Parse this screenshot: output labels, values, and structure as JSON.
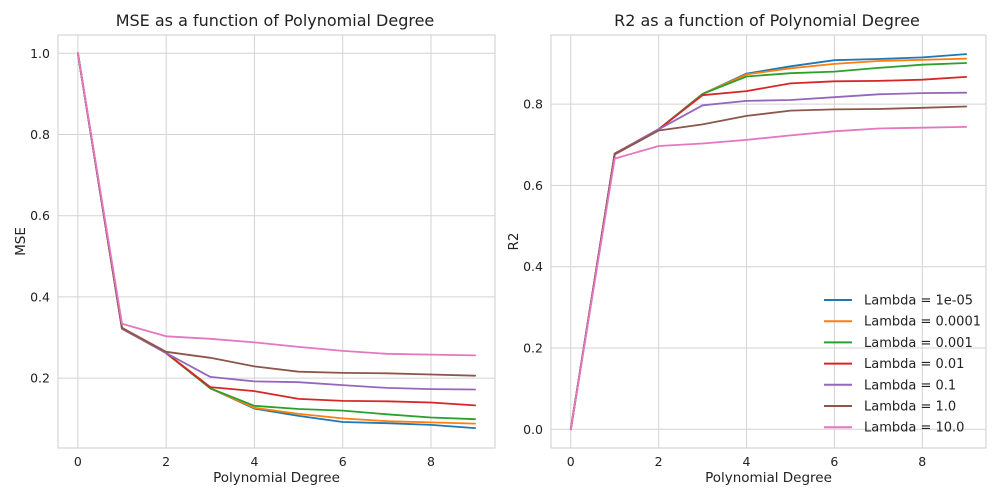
{
  "colors": [
    "#1f77b4",
    "#ff7f0e",
    "#2ca02c",
    "#d62728",
    "#9467bd",
    "#8c564b",
    "#e377c2"
  ],
  "chart_data": [
    {
      "type": "line",
      "title": "MSE as a function of Polynomial Degree",
      "xlabel": "Polynomial Degree",
      "ylabel": "MSE",
      "xlim": [
        -0.45,
        9.45
      ],
      "ylim": [
        0.028,
        1.045
      ],
      "xticks": [
        0,
        2,
        4,
        6,
        8
      ],
      "yticks": [
        0.2,
        0.4,
        0.6,
        0.8,
        1.0
      ],
      "ytick_labels": [
        "0.2",
        "0.4",
        "0.6",
        "0.8",
        "1.0"
      ],
      "grid": true,
      "legend": false,
      "x": [
        0,
        1,
        2,
        3,
        4,
        5,
        6,
        7,
        8,
        9
      ],
      "series": [
        {
          "name": "Lambda = 1e-05",
          "values": [
            1.0,
            0.322,
            0.262,
            0.175,
            0.125,
            0.107,
            0.092,
            0.089,
            0.085,
            0.077
          ]
        },
        {
          "name": "Lambda = 0.0001",
          "values": [
            1.0,
            0.322,
            0.262,
            0.175,
            0.127,
            0.112,
            0.101,
            0.094,
            0.091,
            0.088
          ]
        },
        {
          "name": "Lambda = 0.001",
          "values": [
            1.0,
            0.322,
            0.262,
            0.175,
            0.132,
            0.124,
            0.12,
            0.111,
            0.103,
            0.099
          ]
        },
        {
          "name": "Lambda = 0.01",
          "values": [
            1.0,
            0.322,
            0.262,
            0.178,
            0.168,
            0.149,
            0.144,
            0.143,
            0.14,
            0.133
          ]
        },
        {
          "name": "Lambda = 0.1",
          "values": [
            1.0,
            0.323,
            0.262,
            0.203,
            0.192,
            0.19,
            0.183,
            0.176,
            0.173,
            0.172
          ]
        },
        {
          "name": "Lambda = 1.0",
          "values": [
            1.0,
            0.324,
            0.265,
            0.25,
            0.229,
            0.216,
            0.213,
            0.212,
            0.209,
            0.206
          ]
        },
        {
          "name": "Lambda = 10.0",
          "values": [
            1.0,
            0.334,
            0.303,
            0.297,
            0.288,
            0.277,
            0.267,
            0.26,
            0.258,
            0.256
          ]
        }
      ]
    },
    {
      "type": "line",
      "title": "R2 as a function of Polynomial Degree",
      "xlabel": "Polynomial Degree",
      "ylabel": "R2",
      "xlim": [
        -0.45,
        9.45
      ],
      "ylim": [
        -0.046,
        0.97
      ],
      "xticks": [
        0,
        2,
        4,
        6,
        8
      ],
      "yticks": [
        0.0,
        0.2,
        0.4,
        0.6,
        0.8
      ],
      "ytick_labels": [
        "0.0",
        "0.2",
        "0.4",
        "0.6",
        "0.8"
      ],
      "grid": true,
      "legend": true,
      "legend_position": "lower-right",
      "x": [
        0,
        1,
        2,
        3,
        4,
        5,
        6,
        7,
        8,
        9
      ],
      "series": [
        {
          "name": "Lambda = 1e-05",
          "values": [
            0.0,
            0.678,
            0.738,
            0.825,
            0.875,
            0.893,
            0.908,
            0.911,
            0.915,
            0.923
          ]
        },
        {
          "name": "Lambda = 0.0001",
          "values": [
            0.0,
            0.678,
            0.738,
            0.825,
            0.873,
            0.888,
            0.899,
            0.906,
            0.909,
            0.912
          ]
        },
        {
          "name": "Lambda = 0.001",
          "values": [
            0.0,
            0.678,
            0.738,
            0.825,
            0.868,
            0.876,
            0.88,
            0.889,
            0.897,
            0.901
          ]
        },
        {
          "name": "Lambda = 0.01",
          "values": [
            0.0,
            0.678,
            0.738,
            0.822,
            0.832,
            0.851,
            0.856,
            0.857,
            0.86,
            0.867
          ]
        },
        {
          "name": "Lambda = 0.1",
          "values": [
            0.0,
            0.677,
            0.738,
            0.797,
            0.808,
            0.81,
            0.817,
            0.824,
            0.827,
            0.828
          ]
        },
        {
          "name": "Lambda = 1.0",
          "values": [
            0.0,
            0.676,
            0.735,
            0.75,
            0.771,
            0.784,
            0.787,
            0.788,
            0.791,
            0.794
          ]
        },
        {
          "name": "Lambda = 10.0",
          "values": [
            0.0,
            0.666,
            0.697,
            0.703,
            0.712,
            0.723,
            0.733,
            0.74,
            0.742,
            0.744
          ]
        }
      ]
    }
  ]
}
